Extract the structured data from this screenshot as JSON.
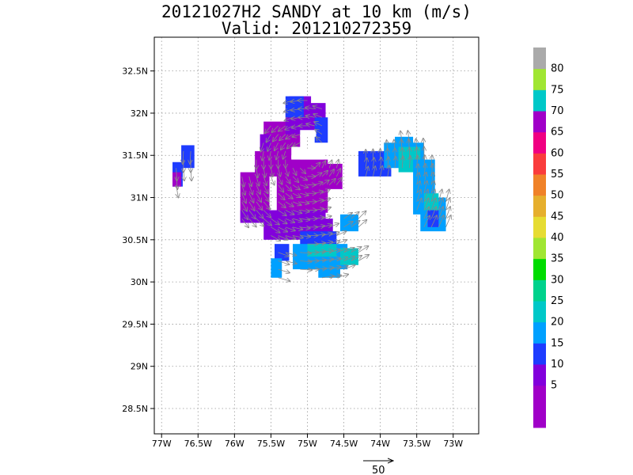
{
  "title": {
    "line1": "20121027H2 SANDY at 10 km (m/s)",
    "line2": "Valid: 201210272359"
  },
  "axes": {
    "lon_range": [
      -77.1,
      -72.65
    ],
    "lat_range": [
      28.2,
      32.9
    ],
    "lon_ticks": [
      {
        "value": -77.0,
        "label": "77W"
      },
      {
        "value": -76.5,
        "label": "76.5W"
      },
      {
        "value": -76.0,
        "label": "76W"
      },
      {
        "value": -75.5,
        "label": "75.5W"
      },
      {
        "value": -75.0,
        "label": "75W"
      },
      {
        "value": -74.5,
        "label": "74.5W"
      },
      {
        "value": -74.0,
        "label": "74W"
      },
      {
        "value": -73.5,
        "label": "73.5W"
      },
      {
        "value": -73.0,
        "label": "73W"
      }
    ],
    "lat_ticks": [
      {
        "value": 28.5,
        "label": "28.5N"
      },
      {
        "value": 29.0,
        "label": "29N"
      },
      {
        "value": 29.5,
        "label": "29.5N"
      },
      {
        "value": 30.0,
        "label": "30N"
      },
      {
        "value": 30.5,
        "label": "30.5N"
      },
      {
        "value": 31.0,
        "label": "31N"
      },
      {
        "value": 31.5,
        "label": "31.5N"
      },
      {
        "value": 32.0,
        "label": "32N"
      },
      {
        "value": 32.5,
        "label": "32.5N"
      }
    ],
    "grid": true
  },
  "colorbar": {
    "bins": [
      {
        "label": "",
        "color": "#a000c8"
      },
      {
        "label": "5",
        "color": "#a000c8"
      },
      {
        "label": "10",
        "color": "#8200dc"
      },
      {
        "label": "15",
        "color": "#1e3cff"
      },
      {
        "label": "20",
        "color": "#00a0ff"
      },
      {
        "label": "25",
        "color": "#00c8c8"
      },
      {
        "label": "30",
        "color": "#00d28c"
      },
      {
        "label": "35",
        "color": "#00dc00"
      },
      {
        "label": "40",
        "color": "#a0e632"
      },
      {
        "label": "45",
        "color": "#e6dc32"
      },
      {
        "label": "50",
        "color": "#e6af2d"
      },
      {
        "label": "55",
        "color": "#f08228"
      },
      {
        "label": "60",
        "color": "#fa3c3c"
      },
      {
        "label": "65",
        "color": "#f00082"
      },
      {
        "label": "70",
        "color": "#a000c8"
      },
      {
        "label": "75",
        "color": "#00c8c8"
      },
      {
        "label": "80",
        "color": "#a0e632"
      },
      {
        "label": "",
        "color": "#aaaaaa"
      }
    ]
  },
  "reference_vector": {
    "label": "50",
    "speed": 50,
    "color": "#000000"
  },
  "wind_field": {
    "cell_size_deg": 0.05,
    "vector_color": "#888888",
    "clusters": [
      {
        "name": "west-strip",
        "color": "#1e3cff",
        "rects": [
          [
            -76.85,
            31.13,
            -76.71,
            31.42
          ],
          [
            -76.73,
            31.35,
            -76.55,
            31.62
          ]
        ]
      },
      {
        "name": "west-strip-inner",
        "color": "#a000c8",
        "rects": [
          [
            -76.85,
            31.13,
            -76.73,
            31.3
          ]
        ]
      },
      {
        "name": "west-lobe",
        "color": "#a000c8",
        "rects": [
          [
            -75.92,
            30.72,
            -75.52,
            31.3
          ],
          [
            -75.72,
            31.25,
            -75.22,
            31.55
          ],
          [
            -75.6,
            31.5,
            -75.1,
            31.9
          ]
        ]
      },
      {
        "name": "west-lobe-edge",
        "color": "#8200dc",
        "rects": [
          [
            -75.92,
            30.7,
            -75.6,
            30.85
          ],
          [
            -75.65,
            31.55,
            -75.5,
            31.75
          ]
        ]
      },
      {
        "name": "north-band",
        "color": "#8200dc",
        "rects": [
          [
            -75.3,
            31.75,
            -74.75,
            32.12
          ],
          [
            -75.25,
            31.9,
            -74.95,
            32.2
          ]
        ]
      },
      {
        "name": "north-band-blue",
        "color": "#1e3cff",
        "rects": [
          [
            -75.3,
            31.95,
            -75.05,
            32.2
          ],
          [
            -74.9,
            31.65,
            -74.72,
            31.95
          ]
        ]
      },
      {
        "name": "center-body",
        "color": "#a000c8",
        "rects": [
          [
            -75.42,
            30.82,
            -74.72,
            31.45
          ],
          [
            -74.95,
            31.1,
            -74.52,
            31.4
          ]
        ]
      },
      {
        "name": "center-south",
        "color": "#8200dc",
        "rects": [
          [
            -75.6,
            30.5,
            -74.75,
            30.85
          ],
          [
            -75.2,
            30.55,
            -74.65,
            30.75
          ]
        ]
      },
      {
        "name": "center-south-blue",
        "color": "#1e3cff",
        "rects": [
          [
            -75.1,
            30.2,
            -74.6,
            30.6
          ],
          [
            -75.45,
            30.25,
            -75.25,
            30.45
          ]
        ]
      },
      {
        "name": "east-arc-left",
        "color": "#1e3cff",
        "rects": [
          [
            -74.3,
            31.25,
            -73.85,
            31.55
          ]
        ]
      },
      {
        "name": "east-arc-top",
        "color": "#00a0ff",
        "rects": [
          [
            -73.95,
            31.35,
            -73.4,
            31.65
          ],
          [
            -73.8,
            31.55,
            -73.55,
            31.72
          ]
        ]
      },
      {
        "name": "east-arc-top-teal",
        "color": "#00c8c8",
        "rects": [
          [
            -73.75,
            31.3,
            -73.45,
            31.6
          ]
        ]
      },
      {
        "name": "east-arc-right",
        "color": "#00a0ff",
        "rects": [
          [
            -73.55,
            30.8,
            -73.25,
            31.45
          ],
          [
            -73.45,
            30.6,
            -73.1,
            31.0
          ]
        ]
      },
      {
        "name": "east-arc-right-teal",
        "color": "#00c8c8",
        "rects": [
          [
            -73.4,
            30.85,
            -73.2,
            31.05
          ]
        ]
      },
      {
        "name": "east-arc-right-blue",
        "color": "#1e3cff",
        "rects": [
          [
            -73.35,
            30.65,
            -73.2,
            30.85
          ]
        ]
      },
      {
        "name": "mid-east",
        "color": "#00a0ff",
        "rects": [
          [
            -74.55,
            30.6,
            -74.3,
            30.8
          ]
        ]
      },
      {
        "name": "south-blob",
        "color": "#00a0ff",
        "rects": [
          [
            -75.5,
            30.05,
            -75.35,
            30.28
          ],
          [
            -75.2,
            30.15,
            -74.45,
            30.45
          ],
          [
            -74.85,
            30.05,
            -74.55,
            30.2
          ]
        ]
      },
      {
        "name": "south-blob-teal",
        "color": "#00c8c8",
        "rects": [
          [
            -74.55,
            30.2,
            -74.3,
            30.4
          ],
          [
            -75.0,
            30.3,
            -74.6,
            30.45
          ]
        ]
      }
    ],
    "holes": [
      [
        -75.22,
        31.46,
        -75.02,
        31.6
      ],
      [
        -75.1,
        31.72,
        -74.88,
        31.8
      ],
      [
        -75.1,
        31.45,
        -74.78,
        31.58
      ]
    ]
  }
}
